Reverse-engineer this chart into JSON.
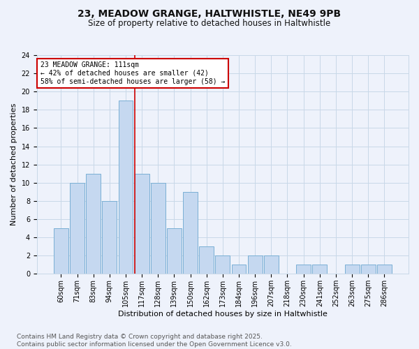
{
  "title": "23, MEADOW GRANGE, HALTWHISTLE, NE49 9PB",
  "subtitle": "Size of property relative to detached houses in Haltwhistle",
  "xlabel": "Distribution of detached houses by size in Haltwhistle",
  "ylabel": "Number of detached properties",
  "categories": [
    "60sqm",
    "71sqm",
    "83sqm",
    "94sqm",
    "105sqm",
    "117sqm",
    "128sqm",
    "139sqm",
    "150sqm",
    "162sqm",
    "173sqm",
    "184sqm",
    "196sqm",
    "207sqm",
    "218sqm",
    "230sqm",
    "241sqm",
    "252sqm",
    "263sqm",
    "275sqm",
    "286sqm"
  ],
  "values": [
    5,
    10,
    11,
    8,
    19,
    11,
    10,
    5,
    9,
    3,
    2,
    1,
    2,
    2,
    0,
    1,
    1,
    0,
    1,
    1,
    1
  ],
  "bar_color": "#c5d8f0",
  "bar_edge_color": "#7aafd4",
  "vline_x_index": 5,
  "vline_color": "#cc0000",
  "ylim": [
    0,
    24
  ],
  "yticks": [
    0,
    2,
    4,
    6,
    8,
    10,
    12,
    14,
    16,
    18,
    20,
    22,
    24
  ],
  "annotation_box_text": "23 MEADOW GRANGE: 111sqm\n← 42% of detached houses are smaller (42)\n58% of semi-detached houses are larger (58) →",
  "annotation_box_color": "#ffffff",
  "annotation_box_edge_color": "#cc0000",
  "grid_color": "#c8d8e8",
  "background_color": "#eef2fb",
  "footer_text": "Contains HM Land Registry data © Crown copyright and database right 2025.\nContains public sector information licensed under the Open Government Licence v3.0.",
  "title_fontsize": 10,
  "subtitle_fontsize": 8.5,
  "xlabel_fontsize": 8,
  "ylabel_fontsize": 8,
  "tick_fontsize": 7,
  "footer_fontsize": 6.5
}
